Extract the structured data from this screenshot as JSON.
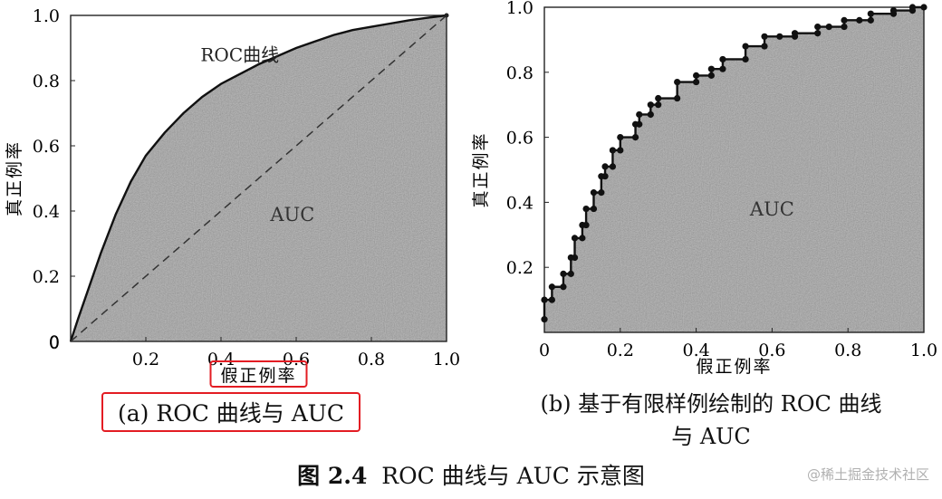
{
  "chart_data": [
    {
      "id": "a",
      "type": "area",
      "xlabel": "假正例率",
      "ylabel": "真正例率",
      "xlim": [
        0,
        1
      ],
      "ylim": [
        0,
        1
      ],
      "xticks": [
        0.2,
        0.4,
        0.6,
        0.8,
        1.0
      ],
      "xtick_labels": [
        "0.2",
        "0.4",
        "0.6",
        "0.8",
        "1.0"
      ],
      "yticks": [
        0,
        0.2,
        0.4,
        0.6,
        0.8,
        1.0
      ],
      "ytick_labels": [
        "0",
        "0.2",
        "0.4",
        "0.6",
        "0.8",
        "1.0"
      ],
      "origin_label": "0",
      "annotations": {
        "curve": "ROC曲线",
        "area": "AUC"
      },
      "series": [
        {
          "x": [
            0,
            0.02,
            0.05,
            0.08,
            0.12,
            0.16,
            0.2,
            0.25,
            0.3,
            0.35,
            0.4,
            0.45,
            0.5,
            0.55,
            0.6,
            0.65,
            0.7,
            0.75,
            0.8,
            0.85,
            0.9,
            0.95,
            1.0
          ],
          "y": [
            0,
            0.07,
            0.17,
            0.27,
            0.39,
            0.49,
            0.57,
            0.64,
            0.7,
            0.75,
            0.79,
            0.82,
            0.85,
            0.875,
            0.9,
            0.92,
            0.94,
            0.955,
            0.965,
            0.975,
            0.985,
            0.993,
            1.0
          ]
        },
        {
          "x": [
            0,
            1
          ],
          "y": [
            0,
            1
          ],
          "style": "dashed"
        }
      ],
      "highlight_label": "假正例率",
      "grid": false,
      "colors": {
        "fill": "#9c9c9c",
        "line": "#111111",
        "highlight": "#e31c23"
      }
    },
    {
      "id": "b",
      "type": "line",
      "xlabel": "假正例率",
      "ylabel": "真正例率",
      "xlim": [
        0,
        1
      ],
      "ylim": [
        0,
        1
      ],
      "xticks": [
        0,
        0.2,
        0.4,
        0.6,
        0.8,
        1.0
      ],
      "xtick_labels": [
        "0",
        "0.2",
        "0.4",
        "0.6",
        "0.8",
        "1.0"
      ],
      "yticks": [
        0.2,
        0.4,
        0.6,
        0.8,
        1.0
      ],
      "ytick_labels": [
        "0.2",
        "0.4",
        "0.6",
        "0.8",
        "1.0"
      ],
      "annotations": {
        "area": "AUC"
      },
      "series": [
        {
          "style": "step-markers",
          "points": [
            [
              0,
              0.04
            ],
            [
              0,
              0.1
            ],
            [
              0.02,
              0.1
            ],
            [
              0.02,
              0.14
            ],
            [
              0.05,
              0.14
            ],
            [
              0.05,
              0.18
            ],
            [
              0.07,
              0.18
            ],
            [
              0.07,
              0.23
            ],
            [
              0.08,
              0.23
            ],
            [
              0.08,
              0.29
            ],
            [
              0.1,
              0.29
            ],
            [
              0.1,
              0.33
            ],
            [
              0.11,
              0.33
            ],
            [
              0.11,
              0.38
            ],
            [
              0.13,
              0.38
            ],
            [
              0.13,
              0.43
            ],
            [
              0.15,
              0.43
            ],
            [
              0.15,
              0.48
            ],
            [
              0.16,
              0.48
            ],
            [
              0.16,
              0.51
            ],
            [
              0.18,
              0.51
            ],
            [
              0.18,
              0.56
            ],
            [
              0.2,
              0.56
            ],
            [
              0.2,
              0.6
            ],
            [
              0.24,
              0.6
            ],
            [
              0.24,
              0.64
            ],
            [
              0.25,
              0.64
            ],
            [
              0.25,
              0.67
            ],
            [
              0.28,
              0.67
            ],
            [
              0.28,
              0.7
            ],
            [
              0.3,
              0.7
            ],
            [
              0.3,
              0.72
            ],
            [
              0.35,
              0.72
            ],
            [
              0.35,
              0.77
            ],
            [
              0.4,
              0.77
            ],
            [
              0.4,
              0.79
            ],
            [
              0.44,
              0.79
            ],
            [
              0.44,
              0.81
            ],
            [
              0.47,
              0.81
            ],
            [
              0.47,
              0.84
            ],
            [
              0.53,
              0.84
            ],
            [
              0.53,
              0.88
            ],
            [
              0.58,
              0.88
            ],
            [
              0.58,
              0.91
            ],
            [
              0.62,
              0.91
            ],
            [
              0.66,
              0.91
            ],
            [
              0.66,
              0.92
            ],
            [
              0.72,
              0.92
            ],
            [
              0.72,
              0.94
            ],
            [
              0.75,
              0.94
            ],
            [
              0.79,
              0.94
            ],
            [
              0.79,
              0.96
            ],
            [
              0.83,
              0.96
            ],
            [
              0.86,
              0.96
            ],
            [
              0.86,
              0.98
            ],
            [
              0.92,
              0.98
            ],
            [
              0.92,
              0.99
            ],
            [
              0.97,
              0.99
            ],
            [
              0.97,
              1.0
            ],
            [
              1.0,
              1.0
            ]
          ]
        }
      ],
      "grid": false,
      "colors": {
        "fill": "#9c9c9c",
        "line": "#111111"
      }
    }
  ],
  "captions": {
    "a": "(a) ROC 曲线与 AUC",
    "b_line1": "(b) 基于有限样例绘制的 ROC 曲线",
    "b_line2": "与 AUC"
  },
  "figure_title": {
    "number": "图 2.4",
    "text": "ROC 曲线与 AUC 示意图"
  },
  "watermark": "@稀土掘金技术社区"
}
